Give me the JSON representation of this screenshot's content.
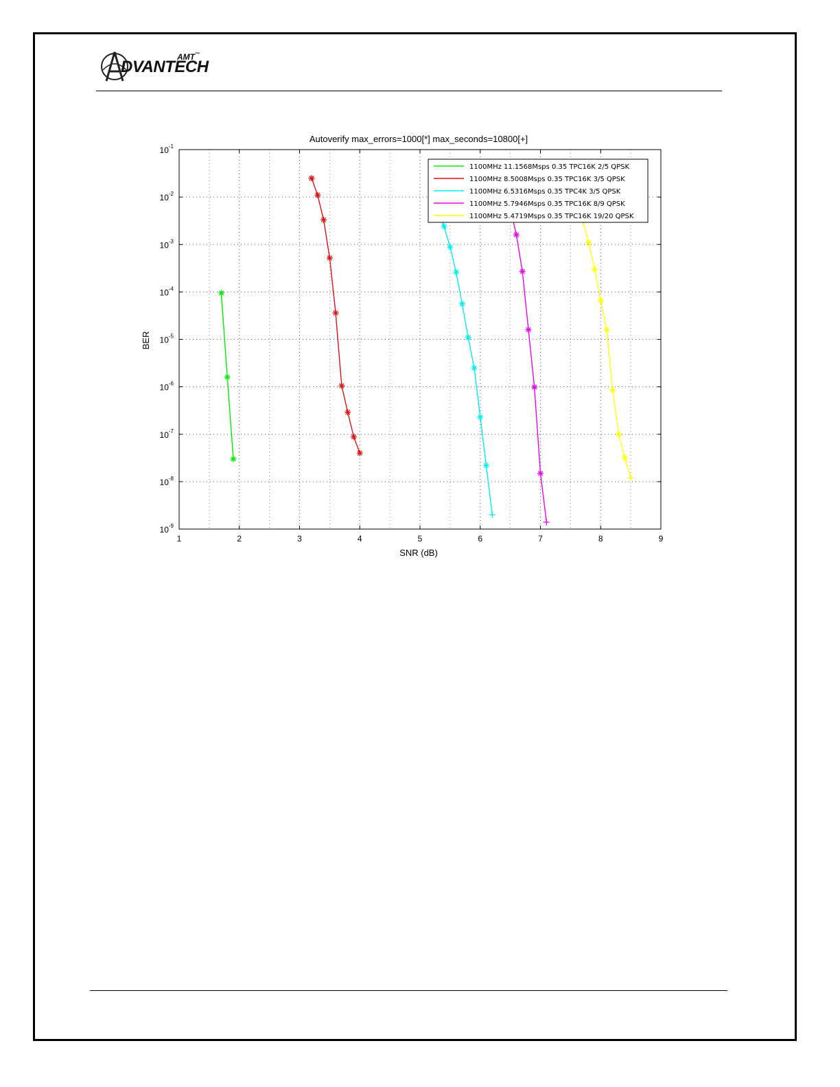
{
  "header": {
    "logo_text": "DVANTECH",
    "logo_super": "AMT",
    "logo_tm": "™"
  },
  "chart_data": {
    "type": "line",
    "title": "Autoverify max_errors=1000[*] max_seconds=10800[+]",
    "xlabel": "SNR (dB)",
    "ylabel": "BER",
    "xlim": [
      1,
      9
    ],
    "ylim": [
      1e-09,
      0.1
    ],
    "yscale": "log",
    "grid": true,
    "legend_position": "top-right",
    "xticks": [
      "1",
      "2",
      "3",
      "4",
      "5",
      "6",
      "7",
      "8",
      "9"
    ],
    "yticks": [
      {
        "base": "10",
        "exp": "-1"
      },
      {
        "base": "10",
        "exp": "-2"
      },
      {
        "base": "10",
        "exp": "-3"
      },
      {
        "base": "10",
        "exp": "-4"
      },
      {
        "base": "10",
        "exp": "-5"
      },
      {
        "base": "10",
        "exp": "-6"
      },
      {
        "base": "10",
        "exp": "-7"
      },
      {
        "base": "10",
        "exp": "-8"
      },
      {
        "base": "10",
        "exp": "-9"
      }
    ],
    "series": [
      {
        "name": "1100MHz 11.1568Msps 0.35 TPC16K 2/5 QPSK",
        "color": "#00ee00",
        "x": [
          1.7,
          1.8,
          1.9
        ],
        "y": [
          9.5e-05,
          1.6e-06,
          3e-08
        ],
        "markers": [
          "*",
          "*",
          "*"
        ]
      },
      {
        "name": "1100MHz 8.5008Msps 0.35 TPC16K 3/5 QPSK",
        "color": "#e01010",
        "x": [
          3.2,
          3.3,
          3.4,
          3.5,
          3.6,
          3.7,
          3.8,
          3.9,
          4.0
        ],
        "y": [
          0.025,
          0.011,
          0.0033,
          0.00052,
          3.6e-05,
          1.05e-06,
          2.9e-07,
          8.8e-08,
          4e-08
        ],
        "markers": [
          "*",
          "*",
          "*",
          "*",
          "*",
          "*",
          "*",
          "*",
          "*"
        ]
      },
      {
        "name": "1100MHz 6.5316Msps 0.35 TPC4K 3/5 QPSK",
        "color": "#00eeee",
        "x": [
          5.3,
          5.4,
          5.5,
          5.6,
          5.7,
          5.8,
          5.9,
          6.0,
          6.1,
          6.2
        ],
        "y": [
          0.0062,
          0.0024,
          0.00088,
          0.00026,
          5.6e-05,
          1.1e-05,
          2.5e-06,
          2.3e-07,
          2.2e-08,
          2e-09
        ],
        "markers": [
          "*",
          "*",
          "*",
          "*",
          "*",
          "*",
          "*",
          "*",
          "*",
          "+"
        ]
      },
      {
        "name": "1100MHz 5.7946Msps 0.35 TPC16K 8/9 QPSK",
        "color": "#ee00ee",
        "x": [
          6.5,
          6.6,
          6.7,
          6.8,
          6.9,
          7.0,
          7.1
        ],
        "y": [
          0.0058,
          0.0016,
          0.00027,
          1.6e-05,
          9.8e-07,
          1.5e-08,
          1.4e-09
        ],
        "markers": [
          "*",
          "*",
          "*",
          "*",
          "*",
          "*",
          "+"
        ]
      },
      {
        "name": "1100MHz 5.4719Msps 0.35 TPC16K 19/20 QPSK",
        "color": "#ffff00",
        "x": [
          7.7,
          7.8,
          7.9,
          8.0,
          8.1,
          8.2,
          8.3,
          8.4,
          8.5
        ],
        "y": [
          0.0032,
          0.0011,
          0.0003,
          6.6e-05,
          1.6e-05,
          8.5e-07,
          1e-07,
          3.2e-08,
          1.2e-08
        ],
        "markers": [
          "*",
          "*",
          "*",
          "*",
          "*",
          "*",
          "*",
          "*",
          "+"
        ]
      }
    ]
  }
}
